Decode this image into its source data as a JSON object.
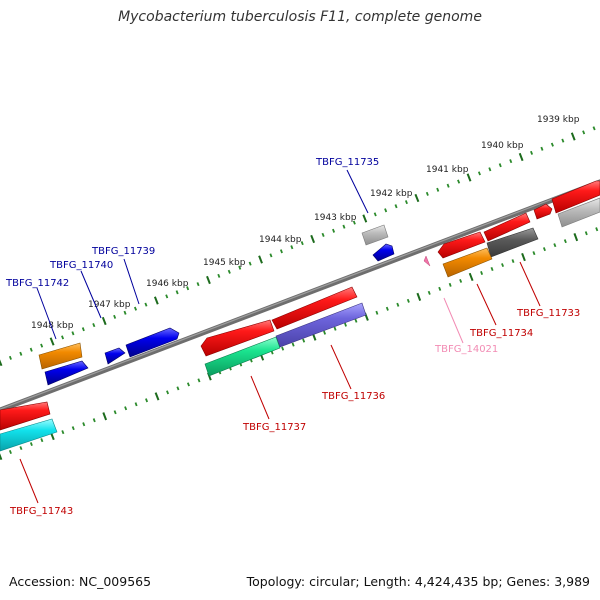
{
  "title": "Mycobacterium tuberculosis F11, complete genome",
  "footer": {
    "accession": "Accession: NC_009565",
    "meta": "Topology: circular; Length: 4,424,435 bp; Genes: 3,989"
  },
  "colors": {
    "forward_label": "#00009c",
    "reverse_label": "#c00000",
    "pseudo_label": "#f28cb4",
    "backbone": "#6e6e6e",
    "tick_major": "#1d6b1d",
    "tick_minor": "#2b8a2b"
  },
  "ruler": {
    "unit": "kbp",
    "labels": [
      "1939 kbp",
      "1940 kbp",
      "1941 kbp",
      "1942 kbp",
      "1943 kbp",
      "1944 kbp",
      "1945 kbp",
      "1946 kbp",
      "1947 kbp",
      "1948 kbp"
    ]
  },
  "gene_labels": [
    {
      "text": "TBFG_11735",
      "strand": "forward"
    },
    {
      "text": "TBFG_11739",
      "strand": "forward"
    },
    {
      "text": "TBFG_11740",
      "strand": "forward"
    },
    {
      "text": "TBFG_11742",
      "strand": "forward"
    },
    {
      "text": "TBFG_11733",
      "strand": "reverse"
    },
    {
      "text": "TBFG_11734",
      "strand": "reverse"
    },
    {
      "text": "TBFG_14021",
      "strand": "pseudo"
    },
    {
      "text": "TBFG_11736",
      "strand": "reverse"
    },
    {
      "text": "TBFG_11737",
      "strand": "reverse"
    },
    {
      "text": "TBFG_11743",
      "strand": "reverse"
    }
  ],
  "feature_colors": {
    "red": "#f20000",
    "gray_light": "#b8b8b8",
    "gray_dark": "#5c5c5c",
    "blue": "#0000e6",
    "orange": "#f08c00",
    "purple": "#6c63d6",
    "green": "#19e38f",
    "cyan": "#10e1ea",
    "pink": "#f074a8"
  }
}
